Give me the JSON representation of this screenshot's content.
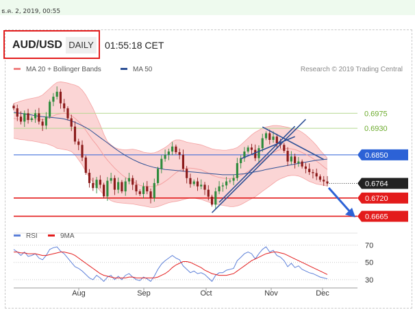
{
  "top": {
    "date": "ธ.ค. 2, 2019, 00:55"
  },
  "header": {
    "symbol": "AUD/USD",
    "timeframe": "DAILY",
    "time": "01:55:18 CET"
  },
  "colors": {
    "up": "#2e8b3c",
    "down": "#8b1a1a",
    "bollinger": "#f4a0a0",
    "bb_fill": "#fbd5d5",
    "ma50": "#2c4f95",
    "resistance": "#6aaa2a",
    "support": "#e31b1b",
    "pivot": "#2c62d6",
    "last": "#222222",
    "channel": "#2c4f95",
    "arrow": "#2c62d6",
    "rsi": "#5b7fd8",
    "rsi_ma": "#e31b1b"
  },
  "chart_data": [
    {
      "type": "candlestick",
      "legend": [
        {
          "label": "MA 20 + Bollinger Bands",
          "color": "#f08080"
        },
        {
          "label": "MA 50",
          "color": "#2c4f95"
        }
      ],
      "watermark": "Research © 2019 Trading Central",
      "x_tick_labels": [
        "Aug",
        "Sep",
        "Oct",
        "Nov",
        "Dec"
      ],
      "y_range": [
        0.6635,
        0.7085
      ],
      "levels": [
        {
          "value": 0.6975,
          "label": "0.6975",
          "kind": "resistance"
        },
        {
          "value": 0.693,
          "label": "0.6930",
          "kind": "resistance"
        },
        {
          "value": 0.685,
          "label": "0.6850",
          "kind": "pivot"
        },
        {
          "value": 0.6764,
          "label": "0.6764",
          "kind": "last"
        },
        {
          "value": 0.672,
          "label": "0.6720",
          "kind": "support"
        },
        {
          "value": 0.6665,
          "label": "0.6665",
          "kind": "support"
        }
      ],
      "close": [
        0.699,
        0.6965,
        0.695,
        0.6975,
        0.6955,
        0.696,
        0.6975,
        0.695,
        0.6938,
        0.6965,
        0.701,
        0.7025,
        0.704,
        0.7005,
        0.699,
        0.696,
        0.6935,
        0.689,
        0.688,
        0.6842,
        0.6796,
        0.6765,
        0.675,
        0.6775,
        0.676,
        0.6725,
        0.6772,
        0.678,
        0.6745,
        0.6768,
        0.674,
        0.677,
        0.678,
        0.676,
        0.674,
        0.6732,
        0.6755,
        0.674,
        0.672,
        0.6765,
        0.6808,
        0.6838,
        0.685,
        0.686,
        0.6875,
        0.6858,
        0.685,
        0.6808,
        0.678,
        0.6762,
        0.677,
        0.6755,
        0.676,
        0.6745,
        0.6724,
        0.67,
        0.674,
        0.6755,
        0.6758,
        0.677,
        0.6772,
        0.678,
        0.6825,
        0.684,
        0.686,
        0.6872,
        0.6865,
        0.684,
        0.687,
        0.69,
        0.6915,
        0.6895,
        0.6905,
        0.6885,
        0.688,
        0.6862,
        0.683,
        0.6845,
        0.6825,
        0.683,
        0.6815,
        0.6808,
        0.6798,
        0.6795,
        0.6785,
        0.6775,
        0.677,
        0.6764
      ],
      "ma20": [
        0.696,
        0.6958,
        0.6957,
        0.6958,
        0.6957,
        0.6956,
        0.6957,
        0.6957,
        0.6956,
        0.6958,
        0.6962,
        0.6967,
        0.6972,
        0.6974,
        0.6975,
        0.6973,
        0.6968,
        0.696,
        0.695,
        0.6938,
        0.6924,
        0.6908,
        0.6893,
        0.688,
        0.6865,
        0.6848,
        0.6834,
        0.6822,
        0.681,
        0.68,
        0.679,
        0.6782,
        0.6775,
        0.677,
        0.6764,
        0.6758,
        0.6756,
        0.6755,
        0.6754,
        0.6755,
        0.6758,
        0.6763,
        0.677,
        0.6778,
        0.6787,
        0.6796,
        0.6803,
        0.6808,
        0.681,
        0.681,
        0.6809,
        0.6807,
        0.6805,
        0.68,
        0.6795,
        0.6789,
        0.6785,
        0.6782,
        0.678,
        0.6779,
        0.6779,
        0.678,
        0.6783,
        0.6788,
        0.6793,
        0.68,
        0.6808,
        0.6815,
        0.6822,
        0.6832,
        0.6842,
        0.685,
        0.6857,
        0.6862,
        0.6866,
        0.6869,
        0.6869,
        0.6868,
        0.6866,
        0.6862,
        0.6857,
        0.6852,
        0.6846,
        0.6839,
        0.6831,
        0.6823,
        0.6814,
        0.6806
      ],
      "bb_upper": [
        0.7005,
        0.7008,
        0.7012,
        0.7015,
        0.7018,
        0.702,
        0.7022,
        0.7025,
        0.703,
        0.704,
        0.705,
        0.706,
        0.7068,
        0.707,
        0.7068,
        0.7066,
        0.7063,
        0.706,
        0.7055,
        0.7045,
        0.703,
        0.701,
        0.699,
        0.6965,
        0.694,
        0.6912,
        0.689,
        0.688,
        0.6872,
        0.6868,
        0.6866,
        0.6865,
        0.6866,
        0.6867,
        0.6865,
        0.6862,
        0.6858,
        0.6856,
        0.6855,
        0.6856,
        0.686,
        0.6866,
        0.6872,
        0.688,
        0.689,
        0.6895,
        0.6895,
        0.6892,
        0.6888,
        0.6886,
        0.6884,
        0.6882,
        0.688,
        0.6876,
        0.6872,
        0.6868,
        0.6866,
        0.6865,
        0.6864,
        0.6864,
        0.6866,
        0.6868,
        0.6872,
        0.688,
        0.689,
        0.69,
        0.691,
        0.6918,
        0.6924,
        0.693,
        0.6934,
        0.6936,
        0.6938,
        0.6938,
        0.6937,
        0.6935,
        0.6933,
        0.693,
        0.6928,
        0.6924,
        0.6918,
        0.691,
        0.69,
        0.689,
        0.6878,
        0.6864,
        0.6852,
        0.684
      ],
      "bb_lower": [
        0.69,
        0.6898,
        0.6896,
        0.6895,
        0.6893,
        0.6892,
        0.689,
        0.6888,
        0.6885,
        0.6884,
        0.688,
        0.6876,
        0.687,
        0.6868,
        0.6866,
        0.6864,
        0.686,
        0.685,
        0.6835,
        0.682,
        0.68,
        0.6782,
        0.6768,
        0.6755,
        0.6742,
        0.673,
        0.672,
        0.6712,
        0.6708,
        0.6706,
        0.6705,
        0.6704,
        0.6703,
        0.6702,
        0.67,
        0.6698,
        0.6696,
        0.6694,
        0.6692,
        0.6692,
        0.6694,
        0.6698,
        0.6702,
        0.6706,
        0.6708,
        0.671,
        0.6712,
        0.6715,
        0.6718,
        0.672,
        0.672,
        0.6718,
        0.6716,
        0.6712,
        0.6708,
        0.6704,
        0.6702,
        0.67,
        0.6698,
        0.6696,
        0.6694,
        0.6694,
        0.6696,
        0.67,
        0.6706,
        0.6712,
        0.6718,
        0.6724,
        0.6732,
        0.674,
        0.6748,
        0.6756,
        0.6764,
        0.6772,
        0.6778,
        0.6782,
        0.6786,
        0.6788,
        0.6788,
        0.6786,
        0.6782,
        0.6776,
        0.677,
        0.6766,
        0.6762,
        0.676,
        0.6758,
        0.6756
      ],
      "ma50": [
        0.6978,
        0.6976,
        0.6975,
        0.6973,
        0.6972,
        0.697,
        0.6968,
        0.6966,
        0.6965,
        0.6964,
        0.6963,
        0.6962,
        0.6961,
        0.696,
        0.6958,
        0.6955,
        0.6952,
        0.6948,
        0.6943,
        0.6938,
        0.6932,
        0.6926,
        0.6918,
        0.691,
        0.6902,
        0.6894,
        0.6886,
        0.6878,
        0.687,
        0.6862,
        0.6855,
        0.6848,
        0.6842,
        0.6836,
        0.6831,
        0.6826,
        0.6822,
        0.6818,
        0.6815,
        0.6812,
        0.681,
        0.6808,
        0.6806,
        0.6805,
        0.6804,
        0.6803,
        0.6802,
        0.6801,
        0.68,
        0.6799,
        0.6798,
        0.6797,
        0.6796,
        0.6795,
        0.6794,
        0.6793,
        0.6792,
        0.6791,
        0.679,
        0.679,
        0.679,
        0.679,
        0.6791,
        0.6792,
        0.6793,
        0.6795,
        0.6797,
        0.6799,
        0.6801,
        0.6803,
        0.6806,
        0.6808,
        0.681,
        0.6812,
        0.6814,
        0.6816,
        0.6818,
        0.682,
        0.6822,
        0.6824,
        0.6826,
        0.6828,
        0.683,
        0.6832,
        0.6834,
        0.6835,
        0.6836,
        0.6837
      ]
    },
    {
      "type": "line",
      "legend": [
        {
          "label": "RSI",
          "color": "#5b7fd8"
        },
        {
          "label": "9MA",
          "color": "#e31b1b"
        }
      ],
      "y_range": [
        22,
        72
      ],
      "y_tick_labels": [
        "70",
        "50",
        "30"
      ],
      "series": [
        {
          "name": "RSI",
          "values": [
            65,
            62,
            58,
            62,
            57,
            58,
            60,
            55,
            53,
            58,
            65,
            67,
            68,
            63,
            60,
            55,
            50,
            45,
            43,
            40,
            36,
            32,
            30,
            35,
            32,
            28,
            33,
            35,
            30,
            34,
            30,
            35,
            37,
            33,
            30,
            29,
            33,
            31,
            28,
            34,
            42,
            48,
            52,
            55,
            58,
            55,
            53,
            46,
            42,
            38,
            40,
            37,
            38,
            36,
            32,
            28,
            35,
            38,
            38,
            41,
            42,
            43,
            52,
            56,
            60,
            62,
            60,
            54,
            60,
            65,
            68,
            62,
            64,
            58,
            56,
            52,
            45,
            49,
            44,
            46,
            42,
            40,
            38,
            37,
            35,
            33,
            32,
            31
          ]
        },
        {
          "name": "9MA",
          "values": [
            62,
            62,
            61,
            61,
            60,
            60,
            60,
            59,
            58,
            58,
            59,
            60,
            61,
            62,
            62,
            61,
            60,
            58,
            55,
            52,
            49,
            46,
            43,
            40,
            37,
            35,
            34,
            33,
            32,
            32,
            32,
            32,
            33,
            33,
            32,
            32,
            32,
            32,
            32,
            32,
            33,
            35,
            37,
            40,
            44,
            47,
            49,
            51,
            51,
            50,
            48,
            46,
            44,
            41,
            39,
            37,
            36,
            35,
            35,
            35,
            36,
            37,
            40,
            43,
            46,
            49,
            52,
            54,
            56,
            58,
            60,
            61,
            62,
            62,
            61,
            60,
            58,
            56,
            54,
            52,
            50,
            48,
            46,
            44,
            42,
            40,
            38,
            36
          ]
        }
      ]
    }
  ]
}
